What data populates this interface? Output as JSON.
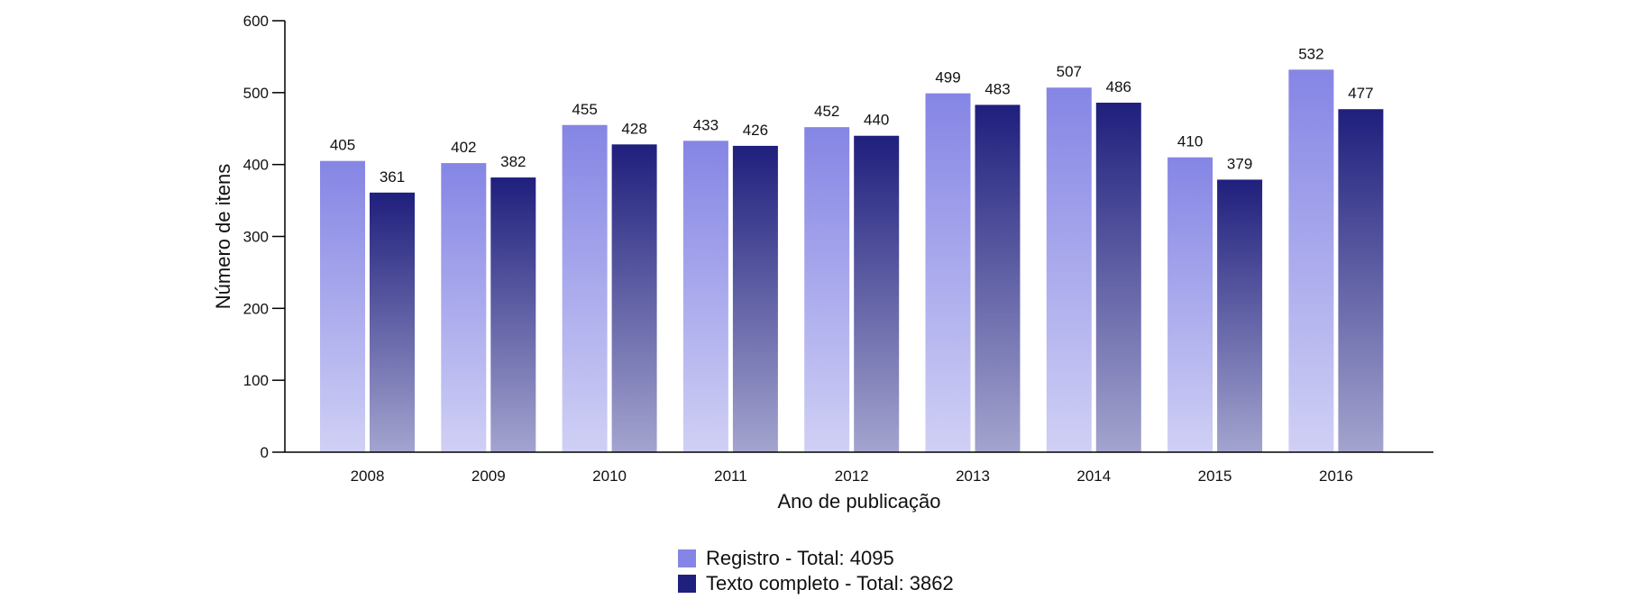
{
  "chart_data": {
    "type": "bar",
    "title": "",
    "xlabel": "Ano de publicação",
    "ylabel": "Número de itens",
    "categories": [
      "2008",
      "2009",
      "2010",
      "2011",
      "2012",
      "2013",
      "2014",
      "2015",
      "2016"
    ],
    "ylim": [
      0,
      600
    ],
    "yticks": [
      "0",
      "100",
      "200",
      "300",
      "400",
      "500",
      "600"
    ],
    "grid": false,
    "legend_position": "bottom-center",
    "series": [
      {
        "name": "Registro - Total: 4095",
        "values": [
          405,
          402,
          455,
          433,
          452,
          499,
          507,
          410,
          532
        ],
        "color_top": "#8585e5",
        "color_bottom": "#d0d0f5"
      },
      {
        "name": "Texto completo - Total: 3862",
        "values": [
          361,
          382,
          428,
          426,
          440,
          483,
          486,
          379,
          477
        ],
        "color_top": "#1f1f7d",
        "color_bottom": "#a4a4cf"
      }
    ],
    "axis_color": "#000000",
    "text_color": "#111111"
  }
}
